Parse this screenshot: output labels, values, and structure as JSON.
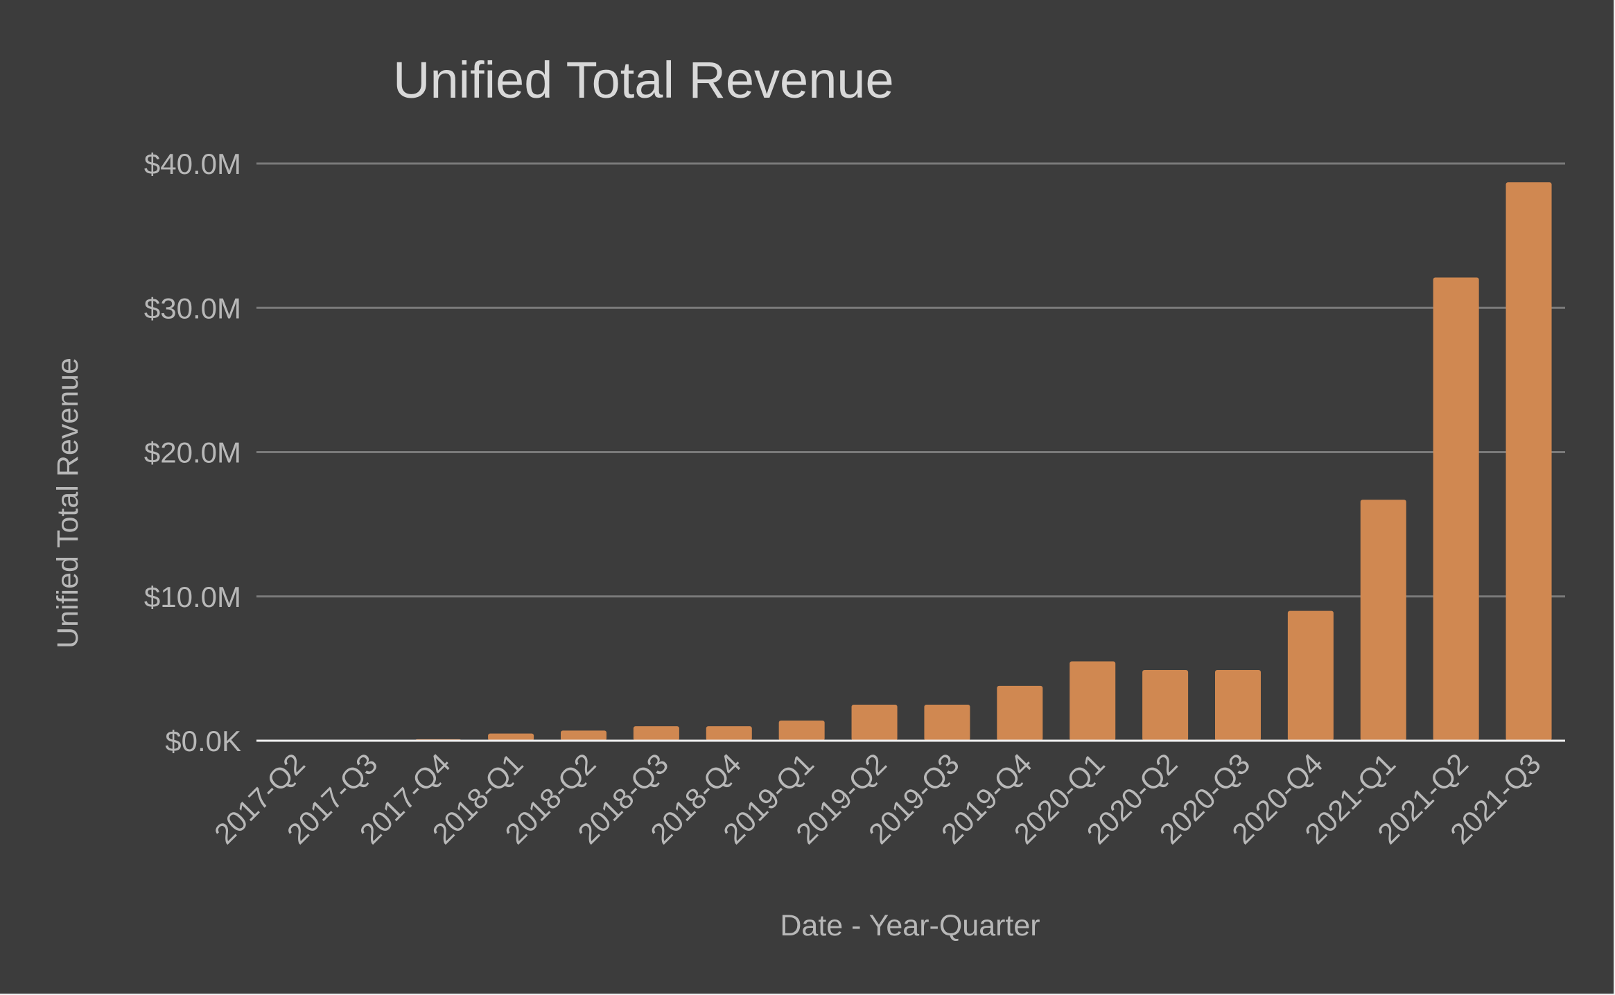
{
  "chart_data": {
    "type": "bar",
    "title": "Unified Total Revenue",
    "xlabel": "Date - Year-Quarter",
    "ylabel": "Unified Total Revenue",
    "ylim": [
      0,
      40
    ],
    "yunit": "millions USD",
    "yticks": [
      {
        "value": 0,
        "label": "$0.0K"
      },
      {
        "value": 10,
        "label": "$10.0M"
      },
      {
        "value": 20,
        "label": "$20.0M"
      },
      {
        "value": 30,
        "label": "$30.0M"
      },
      {
        "value": 40,
        "label": "$40.0M"
      }
    ],
    "grid": true,
    "legend": "none",
    "bar_color": "#d08851",
    "categories": [
      "2017-Q2",
      "2017-Q3",
      "2017-Q4",
      "2018-Q1",
      "2018-Q2",
      "2018-Q3",
      "2018-Q4",
      "2019-Q1",
      "2019-Q2",
      "2019-Q3",
      "2019-Q4",
      "2020-Q1",
      "2020-Q2",
      "2020-Q3",
      "2020-Q4",
      "2021-Q1",
      "2021-Q2",
      "2021-Q3"
    ],
    "values": [
      0.0,
      0.0,
      0.1,
      0.5,
      0.7,
      1.0,
      1.0,
      1.4,
      2.5,
      2.5,
      3.8,
      5.5,
      4.9,
      4.9,
      9.0,
      16.7,
      32.1,
      38.7
    ]
  },
  "colors": {
    "background": "#3c3c3c",
    "text": "#b8b8b8",
    "title": "#d9d9d9",
    "grid": "#7a7a7a",
    "bar": "#d08851"
  }
}
